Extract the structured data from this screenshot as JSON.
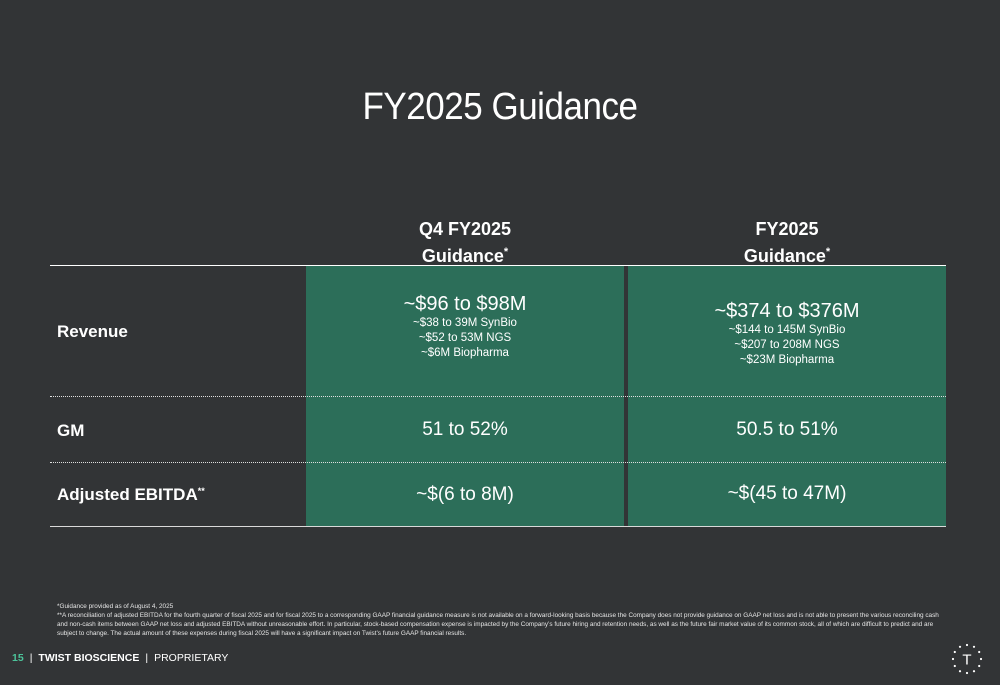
{
  "title": "FY2025 Guidance",
  "columns": [
    {
      "line1": "Q4 FY2025",
      "line2": "Guidance",
      "mark": "*"
    },
    {
      "line1": "FY2025",
      "line2": "Guidance",
      "mark": "*"
    }
  ],
  "rows": {
    "revenue": {
      "label": "Revenue",
      "q4": {
        "main": "~$96 to $98M",
        "subs": [
          "~$38 to 39M SynBio",
          "~$52 to 53M NGS",
          "~$6M Biopharma"
        ]
      },
      "fy": {
        "main": "~$374 to $376M",
        "subs": [
          "~$144 to 145M SynBio",
          "~$207 to 208M NGS",
          "~$23M Biopharma"
        ]
      }
    },
    "gm": {
      "label": "GM",
      "q4": "51 to 52%",
      "fy": "50.5 to 51%"
    },
    "ebitda": {
      "label": "Adjusted EBITDA",
      "mark": "**",
      "q4": "~$(6 to 8M)",
      "fy": "~$(45 to 47M)"
    }
  },
  "footnotes": [
    "*Guidance provided as of August 4, 2025",
    "**A reconciliation of adjusted EBITDA for the fourth quarter of fiscal 2025 and for fiscal 2025 to a corresponding GAAP financial guidance measure is not available on a forward-looking basis because the Company does not provide guidance on GAAP net loss and is not able to present the various reconciling cash and non-cash items between GAAP net loss and adjusted EBITDA without unreasonable effort. In particular, stock-based compensation expense is impacted by the Company’s future hiring and retention needs, as well as the future fair market value of its common stock, all of which are difficult to predict and are subject to change. The actual amount of these expenses during fiscal 2025 will have a significant impact on Twist’s future GAAP financial results."
  ],
  "footer": {
    "page_number": "15",
    "separator": "|",
    "company": "TWIST BIOSCIENCE",
    "label": "PROPRIETARY"
  },
  "logo": {
    "letter": "T"
  },
  "colors": {
    "background": "#323436",
    "cell_green": "#2c6e59",
    "accent": "#4cc39a"
  }
}
